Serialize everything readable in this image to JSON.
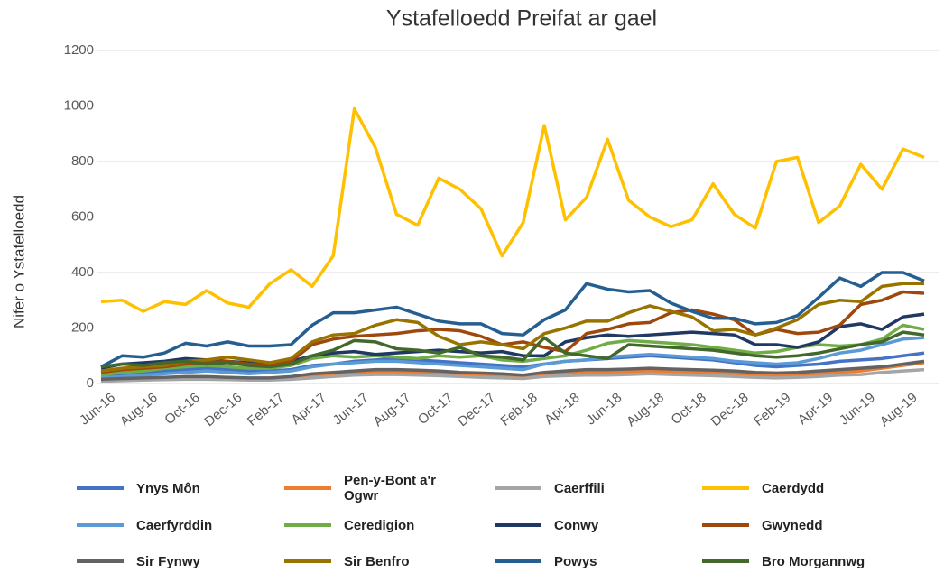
{
  "chart_data": {
    "type": "line",
    "title": "Ystafelloedd Preifat ar gael",
    "y_label": "Nifer o Ystafelloedd",
    "categories": [
      "Jun-16",
      null,
      "Aug-16",
      null,
      "Oct-16",
      null,
      "Dec-16",
      null,
      "Feb-17",
      null,
      "Apr-17",
      null,
      "Jun-17",
      null,
      "Aug-17",
      null,
      "Oct-17",
      null,
      "Dec-17",
      null,
      "Feb-18",
      null,
      "Apr-18",
      null,
      "Jun-18",
      null,
      "Aug-18",
      null,
      "Oct-18",
      null,
      "Dec-18",
      null,
      "Feb-19",
      null,
      "Apr-19",
      null,
      "Jun-19",
      null,
      "Aug-19",
      null
    ],
    "ylim": [
      0,
      1200
    ],
    "yticks": [
      0,
      200,
      400,
      600,
      800,
      1000,
      1200
    ],
    "grid": true,
    "legend": "bottom",
    "series": [
      {
        "name": "Ynys Môn",
        "color": "#4472c4",
        "values": [
          30,
          35,
          40,
          45,
          50,
          55,
          50,
          45,
          45,
          50,
          65,
          70,
          80,
          85,
          90,
          85,
          80,
          75,
          70,
          65,
          60,
          70,
          80,
          85,
          90,
          95,
          100,
          95,
          90,
          85,
          75,
          65,
          60,
          65,
          70,
          80,
          85,
          90,
          100,
          110
        ]
      },
      {
        "name": "Pen-y-Bont a'r Ogwr",
        "color": "#ed7d31",
        "values": [
          10,
          12,
          15,
          18,
          20,
          20,
          18,
          15,
          15,
          20,
          25,
          30,
          35,
          40,
          40,
          38,
          35,
          30,
          28,
          25,
          22,
          30,
          35,
          40,
          40,
          42,
          45,
          42,
          40,
          38,
          35,
          30,
          28,
          30,
          35,
          40,
          45,
          55,
          65,
          75
        ]
      },
      {
        "name": "Caerffili",
        "color": "#a5a5a5",
        "values": [
          8,
          10,
          12,
          14,
          15,
          15,
          14,
          12,
          12,
          15,
          20,
          25,
          30,
          32,
          32,
          30,
          28,
          25,
          22,
          20,
          18,
          25,
          28,
          30,
          30,
          32,
          35,
          32,
          30,
          28,
          25,
          22,
          20,
          22,
          25,
          30,
          32,
          40,
          45,
          50
        ]
      },
      {
        "name": "Caerdydd",
        "color": "#ffc000",
        "values": [
          295,
          300,
          260,
          295,
          285,
          335,
          290,
          275,
          360,
          410,
          350,
          460,
          990,
          850,
          610,
          570,
          740,
          700,
          630,
          460,
          580,
          930,
          590,
          670,
          880,
          660,
          600,
          565,
          590,
          720,
          610,
          560,
          800,
          815,
          580,
          640,
          790,
          700,
          845,
          815
        ]
      },
      {
        "name": "Caerfyrddin",
        "color": "#5b9bd5",
        "values": [
          20,
          25,
          30,
          35,
          40,
          45,
          40,
          35,
          40,
          45,
          60,
          70,
          75,
          80,
          80,
          75,
          70,
          65,
          60,
          55,
          50,
          70,
          80,
          85,
          95,
          100,
          105,
          100,
          95,
          90,
          80,
          75,
          70,
          75,
          90,
          110,
          120,
          140,
          160,
          165
        ]
      },
      {
        "name": "Ceredigion",
        "color": "#70ad47",
        "values": [
          30,
          40,
          45,
          55,
          60,
          65,
          60,
          55,
          55,
          65,
          90,
          100,
          95,
          100,
          95,
          90,
          100,
          95,
          100,
          85,
          80,
          90,
          100,
          120,
          145,
          155,
          150,
          145,
          140,
          130,
          120,
          110,
          115,
          130,
          140,
          135,
          140,
          160,
          210,
          195
        ]
      },
      {
        "name": "Conwy",
        "color": "#203864",
        "values": [
          55,
          70,
          75,
          80,
          90,
          85,
          80,
          75,
          70,
          80,
          100,
          110,
          115,
          105,
          110,
          115,
          120,
          115,
          110,
          115,
          100,
          100,
          150,
          165,
          175,
          170,
          175,
          180,
          185,
          180,
          175,
          140,
          140,
          130,
          150,
          205,
          215,
          195,
          240,
          250
        ]
      },
      {
        "name": "Gwynedd",
        "color": "#9e480e",
        "values": [
          40,
          50,
          55,
          60,
          70,
          75,
          80,
          70,
          65,
          80,
          140,
          160,
          170,
          175,
          180,
          190,
          195,
          190,
          170,
          140,
          150,
          130,
          115,
          180,
          195,
          215,
          220,
          255,
          265,
          250,
          230,
          175,
          195,
          180,
          185,
          210,
          285,
          300,
          330,
          325
        ]
      },
      {
        "name": "Sir Fynwy",
        "color": "#636363",
        "values": [
          15,
          18,
          20,
          22,
          25,
          25,
          22,
          20,
          20,
          25,
          35,
          40,
          45,
          50,
          50,
          48,
          45,
          40,
          38,
          35,
          30,
          40,
          45,
          50,
          50,
          52,
          55,
          52,
          50,
          48,
          45,
          40,
          38,
          40,
          45,
          50,
          55,
          60,
          70,
          80
        ]
      },
      {
        "name": "Sir Benfro",
        "color": "#997300",
        "values": [
          45,
          55,
          60,
          65,
          80,
          85,
          95,
          85,
          75,
          90,
          150,
          175,
          180,
          210,
          230,
          220,
          170,
          140,
          150,
          140,
          125,
          180,
          200,
          225,
          225,
          255,
          280,
          260,
          240,
          190,
          195,
          175,
          200,
          230,
          285,
          300,
          295,
          350,
          360,
          360
        ]
      },
      {
        "name": "Powys",
        "color": "#255e91",
        "values": [
          60,
          100,
          95,
          110,
          145,
          135,
          150,
          135,
          135,
          140,
          210,
          255,
          255,
          265,
          275,
          250,
          225,
          215,
          215,
          180,
          175,
          230,
          265,
          360,
          340,
          330,
          335,
          290,
          260,
          235,
          235,
          215,
          220,
          245,
          310,
          380,
          350,
          400,
          400,
          370
        ]
      },
      {
        "name": "Bro Morgannwg",
        "color": "#43682b",
        "values": [
          60,
          70,
          65,
          75,
          80,
          70,
          75,
          65,
          60,
          70,
          100,
          120,
          155,
          150,
          125,
          120,
          110,
          130,
          100,
          95,
          85,
          165,
          110,
          100,
          90,
          140,
          135,
          130,
          125,
          120,
          110,
          100,
          95,
          100,
          110,
          125,
          140,
          150,
          185,
          175
        ]
      }
    ]
  }
}
